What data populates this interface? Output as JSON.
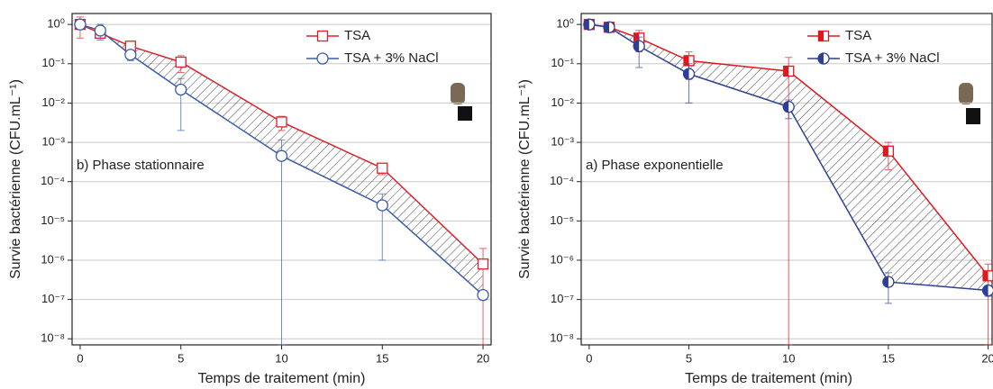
{
  "chart_data": [
    {
      "type": "line",
      "annotation": "b) Phase stationnaire",
      "x_label": "Temps de traitement (min)",
      "y_label": "Survie bactérienne (CFU.mL⁻¹)",
      "x": [
        0,
        1,
        2.5,
        5,
        10,
        15,
        20
      ],
      "series": [
        {
          "name": "TSA",
          "color": "#d9232b",
          "marker": "square-open",
          "values": [
            1,
            0.6,
            0.28,
            0.11,
            0.0033,
            0.00022,
            8e-07
          ],
          "errors": [
            0.55,
            0.15,
            0.05,
            0.05,
            0.0013,
            7e-05,
            1.2e-06
          ]
        },
        {
          "name": "TSA + 3% NaCl",
          "color": "#3a5ca8",
          "marker": "circle-open",
          "values": [
            1,
            0.7,
            0.17,
            0.022,
            0.00045,
            2.5e-05,
            1.3e-07
          ],
          "errors": [
            0.1,
            0.3,
            0.05,
            0.02,
            0.0007,
            2.4e-05,
            3e-08
          ]
        }
      ],
      "xlim": [
        -0.4,
        20.4
      ],
      "xticks": [
        0,
        5,
        10,
        15,
        20
      ],
      "ylim": [
        7e-09,
        1.9
      ],
      "log_y": true,
      "grid": true,
      "legend": "upper right",
      "hatch_between": true,
      "yticks": [
        {
          "value": 1e-08,
          "label": "10⁻⁸"
        },
        {
          "value": 1e-07,
          "label": "10⁻⁷"
        },
        {
          "value": 1e-06,
          "label": "10⁻⁶"
        },
        {
          "value": 1e-05,
          "label": "10⁻⁵"
        },
        {
          "value": 0.0001,
          "label": "10⁻⁴"
        },
        {
          "value": 0.001,
          "label": "10⁻³"
        },
        {
          "value": 0.01,
          "label": "10⁻²"
        },
        {
          "value": 0.1,
          "label": "10⁻¹"
        },
        {
          "value": 1,
          "label": "10⁰"
        }
      ]
    },
    {
      "type": "line",
      "annotation": "a) Phase exponentielle",
      "x_label": "Temps de traitement (min)",
      "y_label": "Survie bactérienne (CFU.mL⁻¹)",
      "x": [
        0,
        1,
        2.5,
        5,
        10,
        15,
        20
      ],
      "series": [
        {
          "name": "TSA",
          "color": "#e0181e",
          "marker": "square-half",
          "values": [
            1,
            0.85,
            0.45,
            0.12,
            0.065,
            0.0006,
            4e-07
          ],
          "errors": [
            0.2,
            0.15,
            0.25,
            0.08,
            0.08,
            0.0004,
            4e-07
          ]
        },
        {
          "name": "TSA + 3% NaCl",
          "color": "#2d3f94",
          "marker": "circle-half",
          "values": [
            1,
            0.85,
            0.28,
            0.055,
            0.008,
            2.8e-07,
            1.7e-07
          ],
          "errors": [
            0.2,
            0.15,
            0.2,
            0.045,
            0.004,
            2e-07,
            5e-08
          ]
        }
      ],
      "xlim": [
        -0.4,
        20.2
      ],
      "xticks": [
        0,
        5,
        10,
        15,
        20
      ],
      "ylim": [
        7e-09,
        1.9
      ],
      "log_y": true,
      "grid": true,
      "legend": "upper right",
      "hatch_between": true,
      "yticks": [
        {
          "value": 1e-08,
          "label": "10⁻⁸"
        },
        {
          "value": 1e-07,
          "label": "10⁻⁷"
        },
        {
          "value": 1e-06,
          "label": "10⁻⁶"
        },
        {
          "value": 1e-05,
          "label": "10⁻⁵"
        },
        {
          "value": 0.0001,
          "label": "10⁻⁴"
        },
        {
          "value": 0.001,
          "label": "10⁻³"
        },
        {
          "value": 0.01,
          "label": "10⁻²"
        },
        {
          "value": 0.1,
          "label": "10⁻¹"
        },
        {
          "value": 1,
          "label": "10⁰"
        }
      ]
    }
  ]
}
